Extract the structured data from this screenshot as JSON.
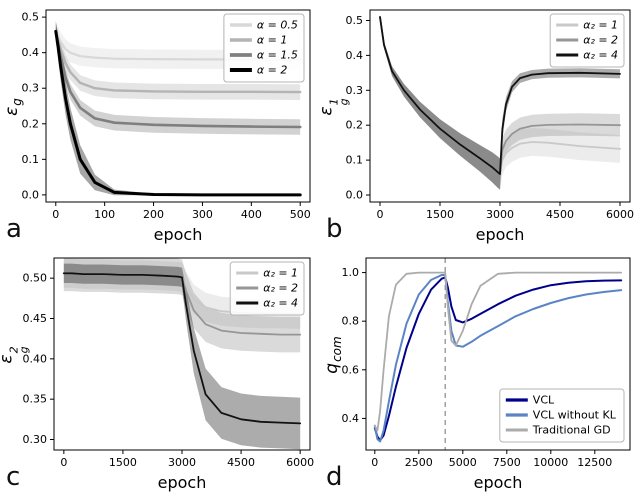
{
  "figure": {
    "panel_letters": [
      "a",
      "b",
      "c",
      "d"
    ]
  },
  "chart_data": [
    {
      "type": "line",
      "panel_label": "a",
      "xlabel": "epoch",
      "ylabel": {
        "base": "ε",
        "sub": "g",
        "sup": ""
      },
      "xlim": [
        -20,
        520
      ],
      "ylim": [
        -0.02,
        0.52
      ],
      "xticks": {
        "values": [
          0,
          100,
          200,
          300,
          400,
          500
        ],
        "labels": [
          "0",
          "100",
          "200",
          "300",
          "400",
          "500"
        ]
      },
      "yticks": {
        "values": [
          0.0,
          0.1,
          0.2,
          0.3,
          0.4,
          0.5
        ],
        "labels": [
          "0.0",
          "0.1",
          "0.2",
          "0.3",
          "0.4",
          "0.5"
        ]
      },
      "legend": "upper right",
      "legend_italic": true,
      "margin_left": 46,
      "series": [
        {
          "name": "α = 0.5",
          "color": "#d8d8d8",
          "lw": 2.2,
          "band": 0.027,
          "x": [
            0,
            5,
            10,
            20,
            30,
            50,
            80,
            120,
            200,
            300,
            400,
            500
          ],
          "y": [
            0.46,
            0.445,
            0.43,
            0.41,
            0.4,
            0.39,
            0.386,
            0.383,
            0.382,
            0.381,
            0.381,
            0.38
          ]
        },
        {
          "name": "α = 1",
          "color": "#b4b4b4",
          "lw": 2.4,
          "band": 0.022,
          "x": [
            0,
            5,
            10,
            20,
            30,
            50,
            80,
            120,
            200,
            300,
            400,
            500
          ],
          "y": [
            0.46,
            0.435,
            0.41,
            0.37,
            0.345,
            0.315,
            0.3,
            0.294,
            0.291,
            0.29,
            0.29,
            0.289
          ]
        },
        {
          "name": "α = 1.5",
          "color": "#7f7f7f",
          "lw": 2.6,
          "band": 0.022,
          "x": [
            0,
            5,
            10,
            20,
            30,
            50,
            80,
            120,
            200,
            300,
            400,
            500
          ],
          "y": [
            0.46,
            0.425,
            0.39,
            0.33,
            0.29,
            0.245,
            0.215,
            0.203,
            0.197,
            0.194,
            0.192,
            0.191
          ]
        },
        {
          "name": "α = 2",
          "color": "#000000",
          "lw": 3,
          "band": [
            0.03,
            0.035,
            0.04,
            0.045,
            0.045,
            0.04,
            0.022,
            0.008,
            0.002,
            0.001,
            0.001,
            0.001
          ],
          "x": [
            0,
            5,
            10,
            20,
            30,
            50,
            80,
            120,
            200,
            300,
            400,
            500
          ],
          "y": [
            0.46,
            0.415,
            0.36,
            0.27,
            0.2,
            0.1,
            0.035,
            0.007,
            0.001,
            0.0,
            0.0,
            0.0
          ]
        }
      ]
    },
    {
      "type": "line",
      "panel_label": "b",
      "xlabel": "epoch",
      "ylabel": {
        "base": "ε",
        "sub": "g",
        "sup": "1"
      },
      "xlim": [
        -250,
        6250
      ],
      "ylim": [
        -0.02,
        0.53
      ],
      "xticks": {
        "values": [
          0,
          1500,
          3000,
          4500,
          6000
        ],
        "labels": [
          "0",
          "1500",
          "3000",
          "4500",
          "6000"
        ]
      },
      "yticks": {
        "values": [
          0.0,
          0.1,
          0.2,
          0.3,
          0.4,
          0.5
        ],
        "labels": [
          "0.0",
          "0.1",
          "0.2",
          "0.3",
          "0.4",
          "0.5"
        ]
      },
      "legend": "upper right",
      "legend_italic": true,
      "margin_left": 50,
      "series": [
        {
          "name": "α₂ = 1",
          "color": "#c9c9c9",
          "lw": 1.8,
          "band": [
            0.006,
            0.01,
            0.014,
            0.018,
            0.022,
            0.027,
            0.032,
            0.038,
            0.043,
            0.045,
            0.045,
            0.04,
            0.04,
            0.04,
            0.04,
            0.04,
            0.04,
            0.04,
            0.04
          ],
          "x": [
            0,
            100,
            300,
            600,
            1000,
            1500,
            2000,
            2500,
            2800,
            2950,
            3000,
            3060,
            3150,
            3300,
            3500,
            3800,
            4200,
            5000,
            6000
          ],
          "y": [
            0.51,
            0.43,
            0.355,
            0.3,
            0.245,
            0.19,
            0.145,
            0.105,
            0.08,
            0.065,
            0.06,
            0.1,
            0.12,
            0.135,
            0.147,
            0.152,
            0.15,
            0.14,
            0.132
          ]
        },
        {
          "name": "α₂ = 2",
          "color": "#969696",
          "lw": 1.8,
          "band": [
            0.006,
            0.01,
            0.014,
            0.018,
            0.022,
            0.027,
            0.032,
            0.038,
            0.043,
            0.045,
            0.045,
            0.035,
            0.032,
            0.032,
            0.032,
            0.032,
            0.032,
            0.032,
            0.032
          ],
          "x": [
            0,
            100,
            300,
            600,
            1000,
            1500,
            2000,
            2500,
            2800,
            2950,
            3000,
            3060,
            3150,
            3300,
            3500,
            3800,
            4200,
            5000,
            6000
          ],
          "y": [
            0.51,
            0.43,
            0.355,
            0.3,
            0.245,
            0.19,
            0.145,
            0.105,
            0.08,
            0.065,
            0.06,
            0.13,
            0.155,
            0.175,
            0.19,
            0.198,
            0.201,
            0.202,
            0.2
          ]
        },
        {
          "name": "α₂ = 4",
          "color": "#111111",
          "lw": 1.8,
          "band": [
            0.006,
            0.01,
            0.014,
            0.018,
            0.022,
            0.027,
            0.032,
            0.038,
            0.043,
            0.045,
            0.045,
            0.03,
            0.02,
            0.016,
            0.014,
            0.013,
            0.013,
            0.013,
            0.013
          ],
          "x": [
            0,
            100,
            300,
            600,
            1000,
            1500,
            2000,
            2500,
            2800,
            2950,
            3000,
            3060,
            3150,
            3300,
            3500,
            3800,
            4200,
            5000,
            6000
          ],
          "y": [
            0.51,
            0.43,
            0.355,
            0.3,
            0.245,
            0.19,
            0.145,
            0.105,
            0.08,
            0.065,
            0.06,
            0.19,
            0.26,
            0.31,
            0.335,
            0.345,
            0.349,
            0.35,
            0.347
          ]
        }
      ]
    },
    {
      "type": "line",
      "panel_label": "c",
      "xlabel": "epoch",
      "ylabel": {
        "base": "ε",
        "sub": "g",
        "sup": "2"
      },
      "xlim": [
        -250,
        6250
      ],
      "ylim": [
        0.287,
        0.525
      ],
      "xticks": {
        "values": [
          0,
          1500,
          3000,
          4500,
          6000
        ],
        "labels": [
          "0",
          "1500",
          "3000",
          "4500",
          "6000"
        ]
      },
      "yticks": {
        "values": [
          0.3,
          0.35,
          0.4,
          0.45,
          0.5
        ],
        "labels": [
          "0.30",
          "0.35",
          "0.40",
          "0.45",
          "0.50"
        ]
      },
      "legend": "upper right",
      "legend_italic": true,
      "margin_left": 54,
      "series": [
        {
          "name": "α₂ = 1",
          "color": "#c9c9c9",
          "lw": 1.8,
          "band": 0.018,
          "x": [
            0,
            200,
            500,
            1000,
            1500,
            2000,
            2500,
            2900,
            3000,
            3100,
            3300,
            3600,
            4000,
            4500,
            5000,
            5500,
            6000
          ],
          "y": [
            0.506,
            0.506,
            0.505,
            0.505,
            0.504,
            0.504,
            0.503,
            0.502,
            0.501,
            0.49,
            0.474,
            0.464,
            0.459,
            0.457,
            0.456,
            0.456,
            0.455
          ]
        },
        {
          "name": "α₂ = 2",
          "color": "#969696",
          "lw": 1.8,
          "band": 0.022,
          "x": [
            0,
            200,
            500,
            1000,
            1500,
            2000,
            2500,
            2900,
            3000,
            3100,
            3300,
            3600,
            4000,
            4500,
            5000,
            5500,
            6000
          ],
          "y": [
            0.506,
            0.506,
            0.505,
            0.505,
            0.504,
            0.504,
            0.503,
            0.502,
            0.501,
            0.485,
            0.46,
            0.443,
            0.435,
            0.432,
            0.431,
            0.43,
            0.43
          ]
        },
        {
          "name": "α₂ = 4",
          "color": "#111111",
          "lw": 1.8,
          "band": [
            0.012,
            0.012,
            0.012,
            0.012,
            0.012,
            0.012,
            0.012,
            0.012,
            0.012,
            0.02,
            0.028,
            0.032,
            0.032,
            0.032,
            0.032,
            0.032,
            0.032
          ],
          "x": [
            0,
            200,
            500,
            1000,
            1500,
            2000,
            2500,
            2900,
            3000,
            3100,
            3300,
            3600,
            4000,
            4500,
            5000,
            5500,
            6000
          ],
          "y": [
            0.506,
            0.506,
            0.505,
            0.505,
            0.504,
            0.504,
            0.503,
            0.502,
            0.501,
            0.468,
            0.41,
            0.356,
            0.333,
            0.325,
            0.322,
            0.321,
            0.32
          ]
        }
      ]
    },
    {
      "type": "line",
      "panel_label": "d",
      "xlabel": "epoch",
      "ylabel": {
        "base": "q",
        "sub": "com",
        "sup": ""
      },
      "xlim": [
        -500,
        14500
      ],
      "ylim": [
        0.27,
        1.06
      ],
      "xticks": {
        "values": [
          0,
          2500,
          5000,
          7500,
          10000,
          12500
        ],
        "labels": [
          "0",
          "2500",
          "5000",
          "7500",
          "10000",
          "12500"
        ]
      },
      "yticks": {
        "values": [
          0.4,
          0.6,
          0.8,
          1.0
        ],
        "labels": [
          "0.4",
          "0.6",
          "0.8",
          "1.0"
        ]
      },
      "legend": "lower right",
      "legend_italic": false,
      "margin_left": 46,
      "vline": {
        "x": 4000,
        "color": "#888888",
        "style": "dashed"
      },
      "series": [
        {
          "name": "VCL",
          "color": "#00008b",
          "lw": 2,
          "x": [
            0,
            150,
            300,
            500,
            800,
            1200,
            1800,
            2500,
            3200,
            3800,
            4000,
            4150,
            4350,
            4600,
            5000,
            5500,
            6000,
            7000,
            8000,
            9000,
            10000,
            11000,
            12000,
            13000,
            14000
          ],
          "y": [
            0.36,
            0.325,
            0.31,
            0.33,
            0.41,
            0.53,
            0.69,
            0.83,
            0.93,
            0.975,
            0.98,
            0.94,
            0.86,
            0.805,
            0.795,
            0.81,
            0.83,
            0.87,
            0.905,
            0.93,
            0.948,
            0.958,
            0.964,
            0.967,
            0.968
          ]
        },
        {
          "name": "VCL without KL",
          "color": "#5b84c4",
          "lw": 2,
          "x": [
            0,
            150,
            300,
            500,
            800,
            1200,
            1800,
            2500,
            3200,
            3800,
            4000,
            4150,
            4350,
            4600,
            5000,
            5500,
            6000,
            7000,
            8000,
            9000,
            10000,
            11000,
            12000,
            13000,
            14000
          ],
          "y": [
            0.37,
            0.315,
            0.305,
            0.35,
            0.47,
            0.62,
            0.79,
            0.91,
            0.97,
            0.99,
            0.99,
            0.88,
            0.76,
            0.7,
            0.695,
            0.715,
            0.74,
            0.78,
            0.82,
            0.85,
            0.875,
            0.895,
            0.91,
            0.92,
            0.928
          ]
        },
        {
          "name": "Traditional GD",
          "color": "#ababab",
          "lw": 1.8,
          "x": [
            0,
            150,
            300,
            500,
            800,
            1200,
            1800,
            2500,
            3200,
            3800,
            4000,
            4150,
            4350,
            4600,
            5000,
            5500,
            6000,
            7000,
            8000,
            9000,
            10000,
            11000,
            12000,
            13000,
            14000
          ],
          "y": [
            0.37,
            0.35,
            0.43,
            0.6,
            0.82,
            0.95,
            0.995,
            1.0,
            1.0,
            1.0,
            1.0,
            0.86,
            0.72,
            0.7,
            0.76,
            0.87,
            0.945,
            0.995,
            1.0,
            1.0,
            1.0,
            1.0,
            1.0,
            1.0,
            1.0
          ]
        }
      ]
    }
  ]
}
